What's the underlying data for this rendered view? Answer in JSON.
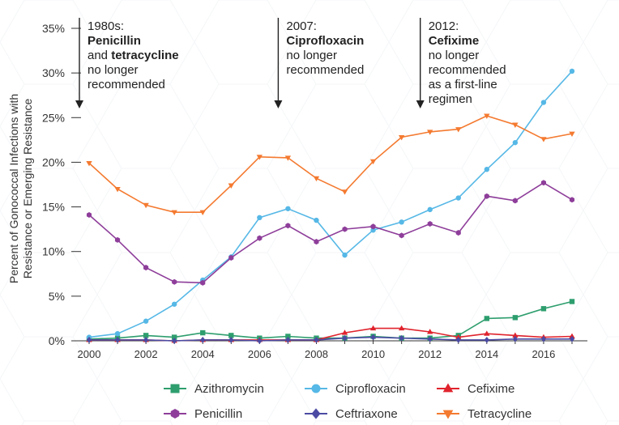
{
  "chart_data": {
    "type": "line",
    "ylabel_line1": "Percent of Gonococcal Infections with",
    "ylabel_line2": "Resistance or Emerging Resistance",
    "ylim": [
      0,
      35
    ],
    "xlim": [
      2000,
      2017
    ],
    "yticks": [
      {
        "value": 0,
        "label": "0%"
      },
      {
        "value": 5,
        "label": "5%"
      },
      {
        "value": 10,
        "label": "10%"
      },
      {
        "value": 15,
        "label": "15%"
      },
      {
        "value": 20,
        "label": "20%"
      },
      {
        "value": 25,
        "label": "25%"
      },
      {
        "value": 30,
        "label": "30%"
      },
      {
        "value": 35,
        "label": "35%"
      }
    ],
    "xticks": [
      {
        "value": 2000,
        "label": "2000"
      },
      {
        "value": 2002,
        "label": "2002"
      },
      {
        "value": 2004,
        "label": "2004"
      },
      {
        "value": 2006,
        "label": "2006"
      },
      {
        "value": 2008,
        "label": "2008"
      },
      {
        "value": 2010,
        "label": "2010"
      },
      {
        "value": 2012,
        "label": "2012"
      },
      {
        "value": 2014,
        "label": "2014"
      },
      {
        "value": 2016,
        "label": "2016"
      }
    ],
    "x": [
      2000,
      2001,
      2002,
      2003,
      2004,
      2005,
      2006,
      2007,
      2008,
      2009,
      2010,
      2011,
      2012,
      2013,
      2014,
      2015,
      2016,
      2017
    ],
    "series": [
      {
        "name": "Azithromycin",
        "key": "azithromycin",
        "color": "#2e9e6e",
        "marker": "square",
        "values": [
          0.2,
          0.3,
          0.6,
          0.4,
          0.9,
          0.6,
          0.3,
          0.5,
          0.3,
          0.3,
          0.5,
          0.3,
          0.3,
          0.6,
          2.5,
          2.6,
          3.6,
          4.4
        ]
      },
      {
        "name": "Ciprofloxacin",
        "key": "ciprofloxacin",
        "color": "#56b8e6",
        "marker": "circle",
        "values": [
          0.4,
          0.8,
          2.2,
          4.1,
          6.8,
          9.4,
          13.8,
          14.8,
          13.5,
          9.6,
          12.4,
          13.3,
          14.7,
          16.0,
          19.2,
          22.2,
          26.7,
          30.2
        ]
      },
      {
        "name": "Cefixime",
        "key": "cefixime",
        "color": "#e0232d",
        "marker": "triangle",
        "values": [
          0.1,
          0.1,
          0.1,
          0.0,
          0.1,
          0.1,
          0.1,
          0.1,
          0.1,
          0.9,
          1.4,
          1.4,
          1.0,
          0.4,
          0.8,
          0.6,
          0.4,
          0.5
        ]
      },
      {
        "name": "Penicillin",
        "key": "penicillin",
        "color": "#8e3e9a",
        "marker": "hexagon",
        "values": [
          14.1,
          11.3,
          8.2,
          6.6,
          6.5,
          9.3,
          11.5,
          12.9,
          11.1,
          12.5,
          12.8,
          11.8,
          13.1,
          12.1,
          16.2,
          15.7,
          17.7,
          15.8
        ]
      },
      {
        "name": "Ceftriaxone",
        "key": "ceftriaxone",
        "color": "#4b4ba3",
        "marker": "diamond",
        "values": [
          0.1,
          0.1,
          0.1,
          0.0,
          0.1,
          0.1,
          0.0,
          0.1,
          0.1,
          0.3,
          0.4,
          0.3,
          0.2,
          0.1,
          0.1,
          0.2,
          0.2,
          0.2
        ]
      },
      {
        "name": "Tetracycline",
        "key": "tetracycline",
        "color": "#f47a30",
        "marker": "triangle-down",
        "values": [
          19.9,
          17.0,
          15.2,
          14.4,
          14.4,
          17.4,
          20.6,
          20.5,
          18.2,
          16.7,
          20.1,
          22.8,
          23.4,
          23.7,
          25.2,
          24.2,
          22.6,
          23.2
        ]
      }
    ],
    "annotations": [
      {
        "year": 2000,
        "lines": [
          [
            {
              "t": "1980s:",
              "b": false
            }
          ],
          [
            {
              "t": "Penicillin",
              "b": true
            }
          ],
          [
            {
              "t": "and ",
              "b": false
            },
            {
              "t": "tetracycline",
              "b": true
            }
          ],
          [
            {
              "t": "no longer",
              "b": false
            }
          ],
          [
            {
              "t": "recommended",
              "b": false
            }
          ]
        ]
      },
      {
        "year": 2007,
        "lines": [
          [
            {
              "t": "2007:",
              "b": false
            }
          ],
          [
            {
              "t": "Ciprofloxacin",
              "b": true
            }
          ],
          [
            {
              "t": "no longer",
              "b": false
            }
          ],
          [
            {
              "t": "recommended",
              "b": false
            }
          ]
        ]
      },
      {
        "year": 2012,
        "lines": [
          [
            {
              "t": "2012:",
              "b": false
            }
          ],
          [
            {
              "t": "Cefixime",
              "b": true
            }
          ],
          [
            {
              "t": "no longer",
              "b": false
            }
          ],
          [
            {
              "t": "recommended",
              "b": false
            }
          ],
          [
            {
              "t": "as a first-line",
              "b": false
            }
          ],
          [
            {
              "t": "regimen",
              "b": false
            }
          ]
        ]
      }
    ],
    "legend_placement": "bottom",
    "grid": false
  }
}
